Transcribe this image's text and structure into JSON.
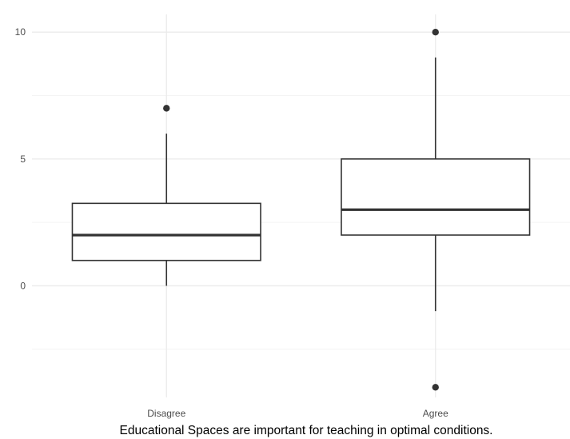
{
  "chart_data": {
    "type": "boxplot",
    "title": "",
    "xlabel": "Educational Spaces are important for teaching in optimal conditions.",
    "ylabel": "",
    "categories": [
      "Disagree",
      "Agree"
    ],
    "boxes": [
      {
        "category": "Disagree",
        "whisker_low": 0,
        "q1": 1,
        "median": 2,
        "q3": 3.25,
        "whisker_high": 6,
        "outliers": [
          7
        ]
      },
      {
        "category": "Agree",
        "whisker_low": -1,
        "q1": 2,
        "median": 3,
        "q3": 5,
        "whisker_high": 9,
        "outliers": [
          10,
          -4
        ]
      }
    ],
    "ylim": [
      -4.4,
      10.7
    ],
    "yticks": [
      0,
      5,
      10
    ],
    "grid": true,
    "legend": "none",
    "colors": {
      "box_fill": "#ffffff",
      "box_stroke": "#333333",
      "outlier": "#333333",
      "grid_major": "#ebebeb",
      "grid_minor": "#f4f4f4"
    }
  }
}
